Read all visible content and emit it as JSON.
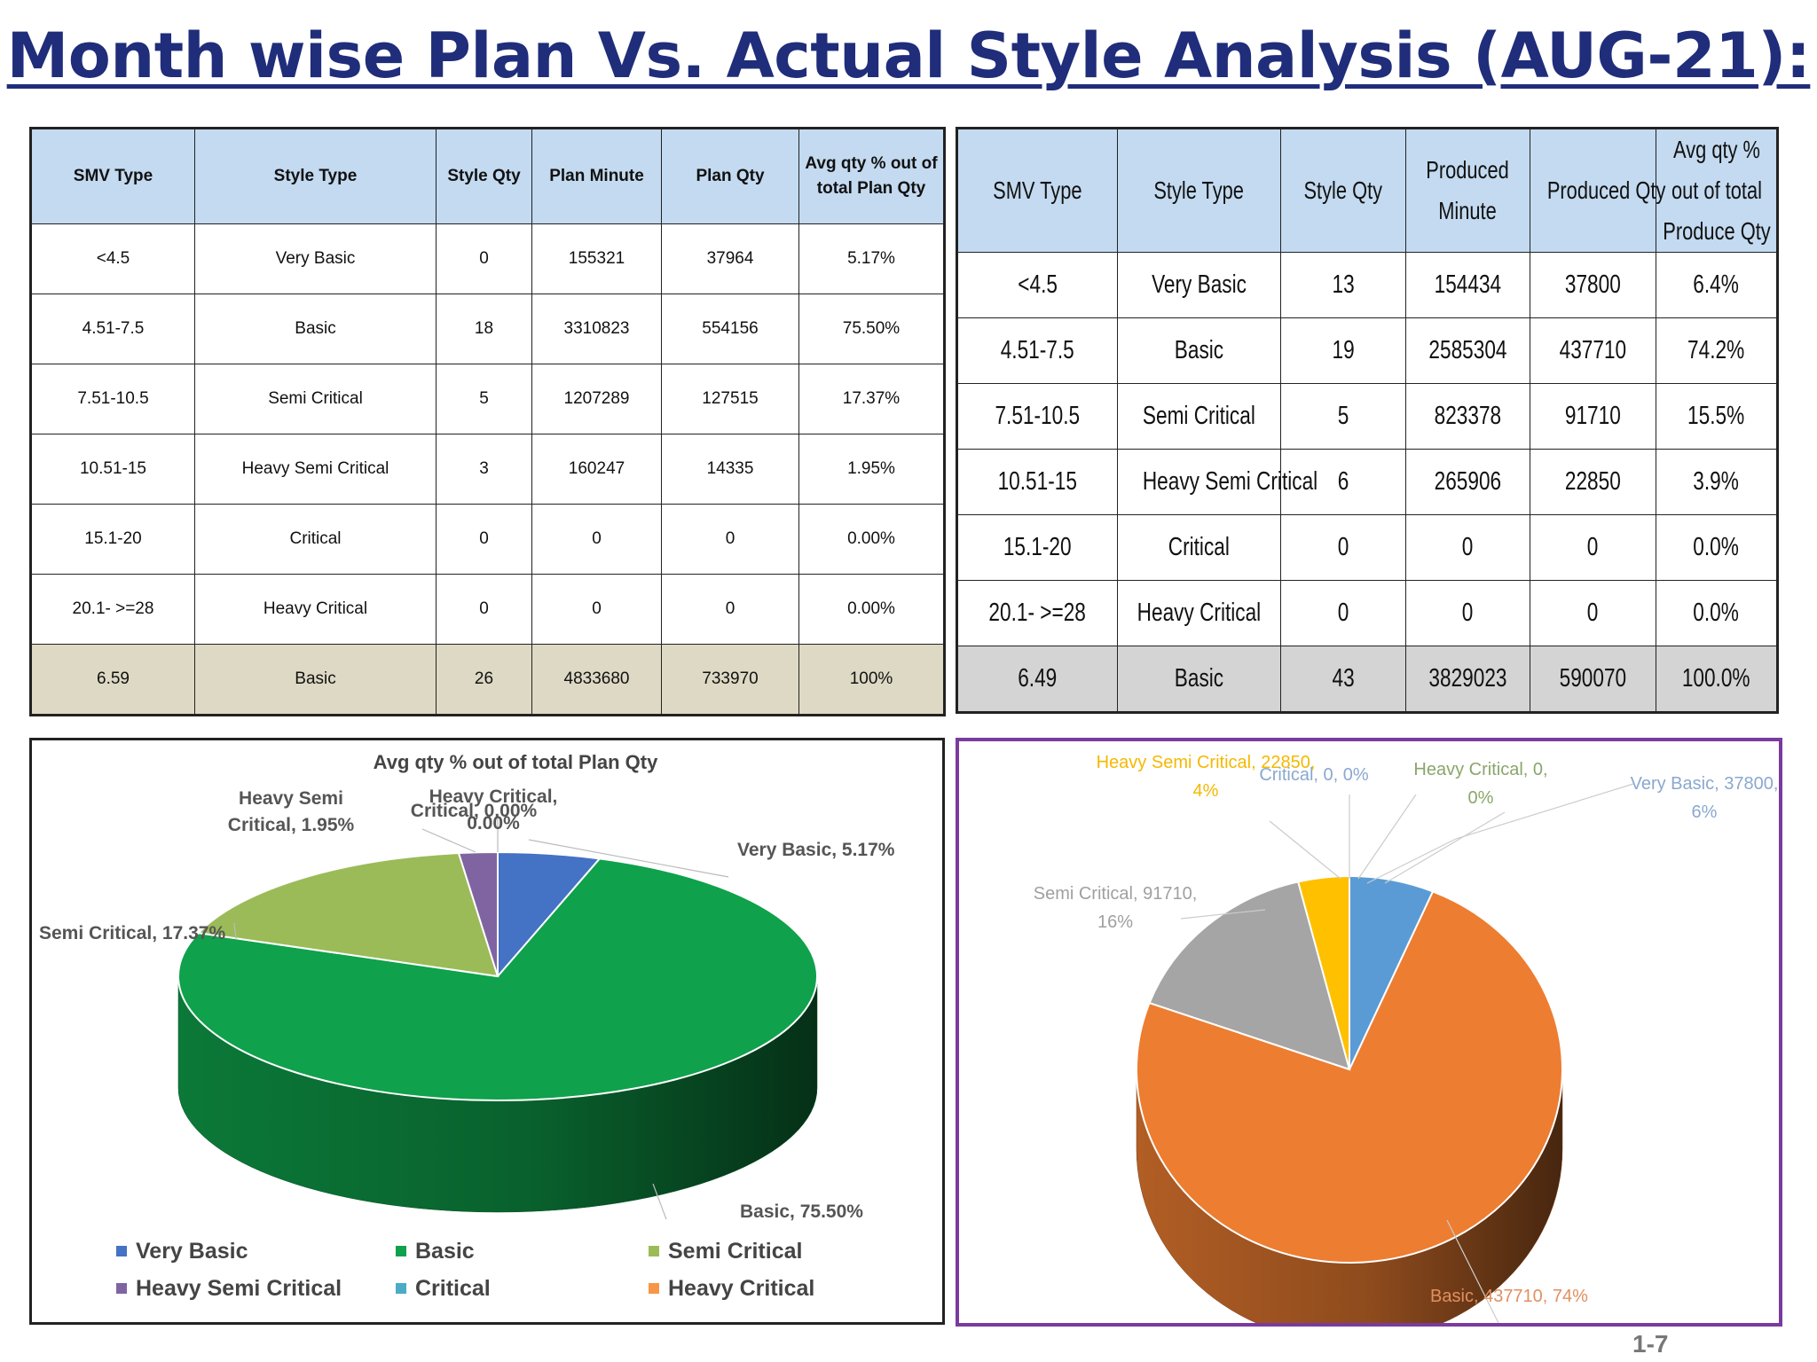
{
  "title": "Month wise Plan Vs. Actual Style Analysis (AUG-21):",
  "page_number": "1-7",
  "plan_table": {
    "headers": [
      "SMV Type",
      "Style Type",
      "Style Qty",
      "Plan Minute",
      "Plan Qty",
      "Avg qty % out of total Plan Qty"
    ],
    "rows": [
      [
        "<4.5",
        "Very Basic",
        "0",
        "155321",
        "37964",
        "5.17%"
      ],
      [
        "4.51-7.5",
        "Basic",
        "18",
        "3310823",
        "554156",
        "75.50%"
      ],
      [
        "7.51-10.5",
        "Semi Critical",
        "5",
        "1207289",
        "127515",
        "17.37%"
      ],
      [
        "10.51-15",
        "Heavy Semi Critical",
        "3",
        "160247",
        "14335",
        "1.95%"
      ],
      [
        "15.1-20",
        "Critical",
        "0",
        "0",
        "0",
        "0.00%"
      ],
      [
        "20.1- >=28",
        "Heavy Critical",
        "0",
        "0",
        "0",
        "0.00%"
      ]
    ],
    "total": [
      "6.59",
      "Basic",
      "26",
      "4833680",
      "733970",
      "100%"
    ]
  },
  "actual_table": {
    "headers": [
      "SMV Type",
      "Style Type",
      "Style Qty",
      "Produced Minute",
      "Produced Qty",
      "Avg qty % out of total Produce Qty"
    ],
    "rows": [
      [
        "<4.5",
        "Very Basic",
        "13",
        "154434",
        "37800",
        "6.4%"
      ],
      [
        "4.51-7.5",
        "Basic",
        "19",
        "2585304",
        "437710",
        "74.2%"
      ],
      [
        "7.51-10.5",
        "Semi Critical",
        "5",
        "823378",
        "91710",
        "15.5%"
      ],
      [
        "10.51-15",
        "Heavy Semi Critical",
        "6",
        "265906",
        "22850",
        "3.9%"
      ],
      [
        "15.1-20",
        "Critical",
        "0",
        "0",
        "0",
        "0.0%"
      ],
      [
        "20.1- >=28",
        "Heavy Critical",
        "0",
        "0",
        "0",
        "0.0%"
      ]
    ],
    "total": [
      "6.49",
      "Basic",
      "43",
      "3829023",
      "590070",
      "100.0%"
    ]
  },
  "chart_data": [
    {
      "type": "pie",
      "title": "Avg qty % out of total Plan Qty",
      "legend_position": "bottom",
      "slices": [
        {
          "name": "Very Basic",
          "value": 5.17,
          "label": "Very Basic, 5.17%",
          "color": "#4472c4"
        },
        {
          "name": "Basic",
          "value": 75.5,
          "label": "Basic, 75.50%",
          "color": "#0fa14b"
        },
        {
          "name": "Semi Critical",
          "value": 17.37,
          "label": "Semi Critical, 17.37%",
          "color": "#9bbb59"
        },
        {
          "name": "Heavy Semi Critical",
          "value": 1.95,
          "label": "Heavy Semi Critical, 1.95%",
          "color": "#8064a2"
        },
        {
          "name": "Critical",
          "value": 0.0,
          "label": "",
          "color": "#4bacc6"
        },
        {
          "name": "Heavy Critical",
          "value": 0.0,
          "label": "Heavy Critical, 0.00%",
          "color": "#f79646"
        }
      ],
      "extra_labels": [
        "Critical, 0.00%"
      ]
    },
    {
      "type": "pie",
      "title": "",
      "slices": [
        {
          "name": "Very Basic",
          "value": 37800,
          "label": "Very Basic, 37800, 6%",
          "color": "#5b9bd5"
        },
        {
          "name": "Basic",
          "value": 437710,
          "label": "Basic, 437710, 74%",
          "color": "#ed7d31"
        },
        {
          "name": "Semi Critical",
          "value": 91710,
          "label": "Semi Critical, 91710, 16%",
          "color": "#a5a5a5"
        },
        {
          "name": "Heavy Semi Critical",
          "value": 22850,
          "label": "Heavy Semi Critical, 22850, 4%",
          "color": "#ffc000"
        },
        {
          "name": "Critical",
          "value": 0,
          "label": "Critical, 0, 0%",
          "color": "#4472c4"
        },
        {
          "name": "Heavy Critical",
          "value": 0,
          "label": "Heavy Critical, 0, 0%",
          "color": "#70ad47"
        }
      ]
    }
  ]
}
